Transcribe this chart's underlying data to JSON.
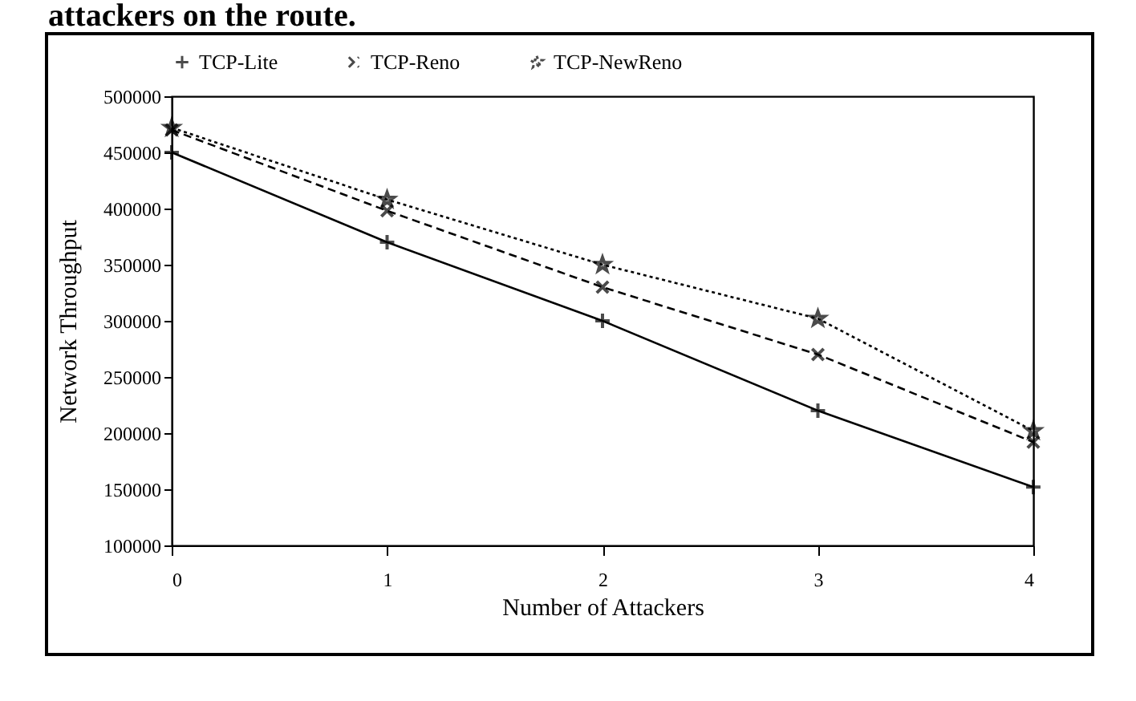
{
  "chart_data": {
    "type": "line",
    "xlabel": "Number of Attackers",
    "ylabel": "Network Throughput",
    "annotations": [
      "attackers on the route."
    ],
    "x": [
      0,
      1,
      2,
      3,
      4
    ],
    "series": [
      {
        "name": "TCP-Lite",
        "color": "#000000",
        "marker": "cross",
        "line_style": "solid",
        "values": [
          450000,
          370000,
          300000,
          220000,
          152000
        ]
      },
      {
        "name": "TCP-Reno",
        "color": "#000000",
        "marker": "x",
        "line_style": "dashed",
        "values": [
          470000,
          398000,
          330000,
          270000,
          192000
        ]
      },
      {
        "name": "TCP-NewReno",
        "color": "#000000",
        "marker": "star",
        "line_style": "dotted",
        "values": [
          472000,
          408000,
          350000,
          302000,
          202000
        ]
      }
    ],
    "xlim": [
      0,
      4
    ],
    "xticks": [
      0,
      1,
      2,
      3,
      4
    ],
    "ylim": [
      100000,
      500000
    ],
    "yticks": [
      100000,
      150000,
      200000,
      250000,
      300000,
      350000,
      400000,
      450000,
      500000
    ],
    "grid": false,
    "legend": "top"
  }
}
